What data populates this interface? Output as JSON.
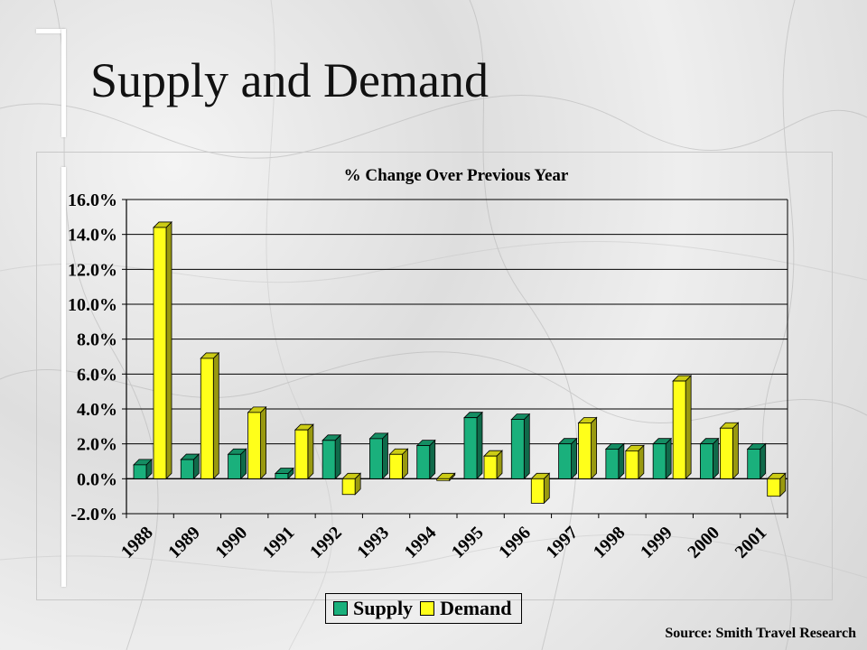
{
  "slide": {
    "title": "Supply and Demand",
    "source": "Source: Smith Travel Research"
  },
  "legend": {
    "supply_label": "Supply",
    "demand_label": "Demand"
  },
  "chart_data": {
    "type": "bar",
    "title": "% Change Over Previous Year",
    "xlabel": "",
    "ylabel": "",
    "categories": [
      "1988",
      "1989",
      "1990",
      "1991",
      "1992",
      "1993",
      "1994",
      "1995",
      "1996",
      "1997",
      "1998",
      "1999",
      "2000",
      "2001"
    ],
    "series": [
      {
        "name": "Supply",
        "color": "#1ab07c",
        "values": [
          0.8,
          1.1,
          1.4,
          0.3,
          2.2,
          2.3,
          1.9,
          3.5,
          3.4,
          2.0,
          1.7,
          2.0,
          2.0,
          1.7
        ]
      },
      {
        "name": "Demand",
        "color": "#ffff1a",
        "values": [
          14.4,
          6.9,
          3.8,
          2.8,
          -0.9,
          1.4,
          -0.1,
          1.3,
          -1.4,
          3.2,
          1.6,
          5.6,
          2.9,
          -1.0
        ]
      }
    ],
    "ylim": [
      -2.0,
      16.0
    ],
    "yticks": [
      "16.0%",
      "14.0%",
      "12.0%",
      "10.0%",
      "8.0%",
      "6.0%",
      "4.0%",
      "2.0%",
      "0.0%",
      "-2.0%"
    ],
    "ytick_values": [
      16,
      14,
      12,
      10,
      8,
      6,
      4,
      2,
      0,
      -2
    ],
    "grid": true,
    "legend_position": "bottom"
  }
}
